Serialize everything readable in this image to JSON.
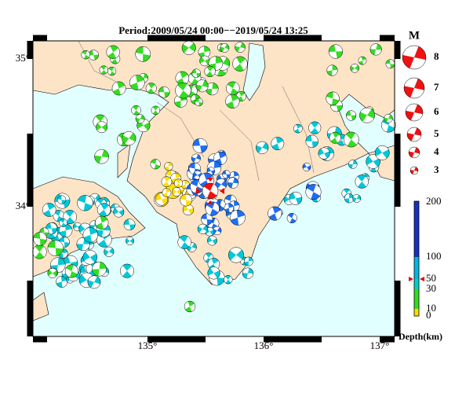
{
  "title": "Period:2009/05/24 00:00−−2019/05/24 13:25",
  "lat_labels": [
    "35°",
    "34°"
  ],
  "lon_labels": [
    "135°",
    "136°",
    "137°"
  ],
  "legend": {
    "title": "M",
    "magnitudes": [
      "8",
      "7",
      "6",
      "5",
      "4",
      "3"
    ]
  },
  "depth_scale": {
    "labels": [
      "200",
      "100",
      "50",
      "30",
      "10",
      "0"
    ],
    "title": "Depth(km)"
  }
}
